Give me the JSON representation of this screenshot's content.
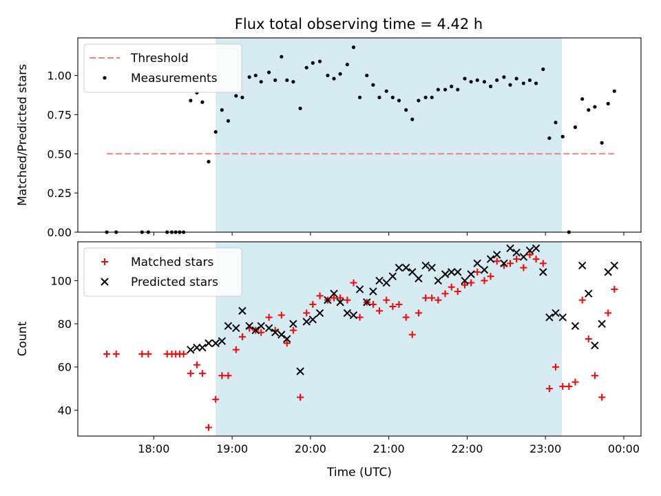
{
  "title": "Flux total observing time = 4.42 h",
  "chart_data": [
    {
      "type": "scatter",
      "ylabel": "Matched/Predicted stars",
      "xlabel": "",
      "x_unit": "UTC hour",
      "xlim": [
        17.03,
        24.22
      ],
      "ylim": [
        0.0,
        1.24
      ],
      "yticks": [
        "0.00",
        "0.25",
        "0.50",
        "0.75",
        "1.00"
      ],
      "yticks_values": [
        0.0,
        0.25,
        0.5,
        0.75,
        1.0
      ],
      "observing_window": [
        18.79,
        23.21
      ],
      "legend_position": "upper left",
      "threshold": {
        "name": "Threshold",
        "y": 0.5,
        "x_range": [
          17.4,
          23.9
        ],
        "color": "#f08080"
      },
      "series": [
        {
          "name": "Measurements",
          "color": "#000000",
          "points": [
            [
              17.4,
              0.0
            ],
            [
              17.52,
              0.0
            ],
            [
              17.85,
              0.0
            ],
            [
              17.93,
              0.0
            ],
            [
              18.17,
              0.0
            ],
            [
              18.23,
              0.0
            ],
            [
              18.28,
              0.0
            ],
            [
              18.33,
              0.0
            ],
            [
              18.38,
              0.0
            ],
            [
              18.47,
              0.84
            ],
            [
              18.55,
              0.89
            ],
            [
              18.62,
              0.83
            ],
            [
              18.7,
              0.45
            ],
            [
              18.79,
              0.64
            ],
            [
              18.87,
              0.78
            ],
            [
              18.95,
              0.71
            ],
            [
              19.05,
              0.87
            ],
            [
              19.13,
              0.86
            ],
            [
              19.22,
              0.99
            ],
            [
              19.3,
              1.0
            ],
            [
              19.37,
              0.96
            ],
            [
              19.47,
              1.02
            ],
            [
              19.55,
              0.97
            ],
            [
              19.63,
              1.12
            ],
            [
              19.7,
              0.97
            ],
            [
              19.78,
              0.96
            ],
            [
              19.87,
              0.79
            ],
            [
              19.95,
              1.05
            ],
            [
              20.03,
              1.08
            ],
            [
              20.12,
              1.09
            ],
            [
              20.22,
              1.0
            ],
            [
              20.3,
              0.98
            ],
            [
              20.38,
              1.01
            ],
            [
              20.47,
              1.07
            ],
            [
              20.55,
              1.18
            ],
            [
              20.63,
              0.86
            ],
            [
              20.72,
              1.0
            ],
            [
              20.8,
              0.94
            ],
            [
              20.88,
              0.86
            ],
            [
              20.97,
              0.9
            ],
            [
              21.05,
              0.86
            ],
            [
              21.13,
              0.84
            ],
            [
              21.22,
              0.78
            ],
            [
              21.3,
              0.72
            ],
            [
              21.38,
              0.84
            ],
            [
              21.47,
              0.86
            ],
            [
              21.55,
              0.86
            ],
            [
              21.63,
              0.91
            ],
            [
              21.72,
              0.91
            ],
            [
              21.8,
              0.93
            ],
            [
              21.88,
              0.91
            ],
            [
              21.97,
              0.98
            ],
            [
              22.05,
              0.96
            ],
            [
              22.13,
              0.97
            ],
            [
              22.22,
              0.96
            ],
            [
              22.3,
              0.93
            ],
            [
              22.38,
              0.97
            ],
            [
              22.47,
              0.99
            ],
            [
              22.55,
              0.94
            ],
            [
              22.63,
              0.98
            ],
            [
              22.72,
              0.95
            ],
            [
              22.8,
              0.97
            ],
            [
              22.88,
              0.95
            ],
            [
              22.97,
              1.04
            ],
            [
              23.05,
              0.6
            ],
            [
              23.13,
              0.7
            ],
            [
              23.22,
              0.61
            ],
            [
              23.3,
              0.0
            ],
            [
              23.38,
              0.67
            ],
            [
              23.47,
              0.85
            ],
            [
              23.55,
              0.78
            ],
            [
              23.63,
              0.8
            ],
            [
              23.72,
              0.57
            ],
            [
              23.8,
              0.82
            ],
            [
              23.88,
              0.9
            ]
          ]
        }
      ]
    },
    {
      "type": "scatter",
      "ylabel": "Count",
      "xlabel": "Time (UTC)",
      "x_unit": "UTC hour",
      "xlim": [
        17.03,
        24.22
      ],
      "ylim": [
        28,
        118
      ],
      "yticks": [
        "40",
        "60",
        "80",
        "100"
      ],
      "yticks_values": [
        40,
        60,
        80,
        100
      ],
      "xticks": [
        "18:00",
        "19:00",
        "20:00",
        "21:00",
        "22:00",
        "23:00",
        "00:00"
      ],
      "xticks_values": [
        18,
        19,
        20,
        21,
        22,
        23,
        24
      ],
      "observing_window": [
        18.79,
        23.21
      ],
      "legend_position": "upper left",
      "series": [
        {
          "name": "Matched stars",
          "color": "#ff0000",
          "marker": "plus",
          "points": [
            [
              17.4,
              66
            ],
            [
              17.52,
              66
            ],
            [
              17.85,
              66
            ],
            [
              17.93,
              66
            ],
            [
              18.17,
              66
            ],
            [
              18.23,
              66
            ],
            [
              18.28,
              66
            ],
            [
              18.33,
              66
            ],
            [
              18.38,
              66
            ],
            [
              18.47,
              57
            ],
            [
              18.55,
              61
            ],
            [
              18.62,
              57
            ],
            [
              18.7,
              32
            ],
            [
              18.79,
              45
            ],
            [
              18.87,
              56
            ],
            [
              18.95,
              56
            ],
            [
              19.05,
              68
            ],
            [
              19.13,
              74
            ],
            [
              19.22,
              78
            ],
            [
              19.3,
              77
            ],
            [
              19.37,
              76
            ],
            [
              19.47,
              83
            ],
            [
              19.55,
              77
            ],
            [
              19.63,
              84
            ],
            [
              19.7,
              71
            ],
            [
              19.78,
              77
            ],
            [
              19.87,
              46
            ],
            [
              19.95,
              85
            ],
            [
              20.03,
              89
            ],
            [
              20.12,
              93
            ],
            [
              20.22,
              91
            ],
            [
              20.3,
              92
            ],
            [
              20.38,
              92
            ],
            [
              20.47,
              91
            ],
            [
              20.55,
              99
            ],
            [
              20.63,
              83
            ],
            [
              20.72,
              90
            ],
            [
              20.8,
              89
            ],
            [
              20.88,
              86
            ],
            [
              20.97,
              91
            ],
            [
              21.05,
              88
            ],
            [
              21.13,
              89
            ],
            [
              21.22,
              83
            ],
            [
              21.3,
              75
            ],
            [
              21.38,
              85
            ],
            [
              21.47,
              92
            ],
            [
              21.55,
              92
            ],
            [
              21.63,
              91
            ],
            [
              21.72,
              94
            ],
            [
              21.8,
              97
            ],
            [
              21.88,
              95
            ],
            [
              21.97,
              98
            ],
            [
              22.05,
              99
            ],
            [
              22.13,
              104
            ],
            [
              22.22,
              100
            ],
            [
              22.3,
              102
            ],
            [
              22.38,
              109
            ],
            [
              22.47,
              107
            ],
            [
              22.55,
              108
            ],
            [
              22.63,
              110
            ],
            [
              22.72,
              106
            ],
            [
              22.8,
              112
            ],
            [
              22.88,
              110
            ],
            [
              22.97,
              108
            ],
            [
              23.05,
              50
            ],
            [
              23.13,
              60
            ],
            [
              23.22,
              51
            ],
            [
              23.3,
              51
            ],
            [
              23.38,
              53
            ],
            [
              23.47,
              91
            ],
            [
              23.55,
              73
            ],
            [
              23.63,
              56
            ],
            [
              23.72,
              46
            ],
            [
              23.8,
              85
            ],
            [
              23.88,
              96
            ]
          ]
        },
        {
          "name": "Predicted stars",
          "color": "#000000",
          "marker": "x",
          "points": [
            [
              18.47,
              68
            ],
            [
              18.55,
              69
            ],
            [
              18.62,
              69
            ],
            [
              18.7,
              71
            ],
            [
              18.79,
              71
            ],
            [
              18.87,
              72
            ],
            [
              18.95,
              79
            ],
            [
              19.05,
              78
            ],
            [
              19.13,
              86
            ],
            [
              19.22,
              79
            ],
            [
              19.3,
              77
            ],
            [
              19.37,
              79
            ],
            [
              19.47,
              78
            ],
            [
              19.55,
              76
            ],
            [
              19.63,
              75
            ],
            [
              19.7,
              73
            ],
            [
              19.78,
              80
            ],
            [
              19.87,
              58
            ],
            [
              19.95,
              81
            ],
            [
              20.03,
              82
            ],
            [
              20.12,
              85
            ],
            [
              20.22,
              91
            ],
            [
              20.3,
              94
            ],
            [
              20.38,
              90
            ],
            [
              20.47,
              85
            ],
            [
              20.55,
              84
            ],
            [
              20.63,
              96
            ],
            [
              20.72,
              90
            ],
            [
              20.8,
              95
            ],
            [
              20.88,
              100
            ],
            [
              20.97,
              99
            ],
            [
              21.05,
              102
            ],
            [
              21.13,
              106
            ],
            [
              21.22,
              106
            ],
            [
              21.3,
              104
            ],
            [
              21.38,
              101
            ],
            [
              21.47,
              107
            ],
            [
              21.55,
              106
            ],
            [
              21.63,
              100
            ],
            [
              21.72,
              103
            ],
            [
              21.8,
              104
            ],
            [
              21.88,
              104
            ],
            [
              21.97,
              100
            ],
            [
              22.05,
              103
            ],
            [
              22.13,
              108
            ],
            [
              22.22,
              105
            ],
            [
              22.3,
              110
            ],
            [
              22.38,
              112
            ],
            [
              22.47,
              108
            ],
            [
              22.55,
              115
            ],
            [
              22.63,
              113
            ],
            [
              22.72,
              111
            ],
            [
              22.8,
              114
            ],
            [
              22.88,
              115
            ],
            [
              22.97,
              104
            ],
            [
              23.05,
              83
            ],
            [
              23.13,
              85
            ],
            [
              23.22,
              83
            ],
            [
              23.38,
              79
            ],
            [
              23.47,
              107
            ],
            [
              23.55,
              94
            ],
            [
              23.63,
              70
            ],
            [
              23.72,
              80
            ],
            [
              23.8,
              104
            ],
            [
              23.88,
              107
            ]
          ]
        }
      ]
    }
  ]
}
